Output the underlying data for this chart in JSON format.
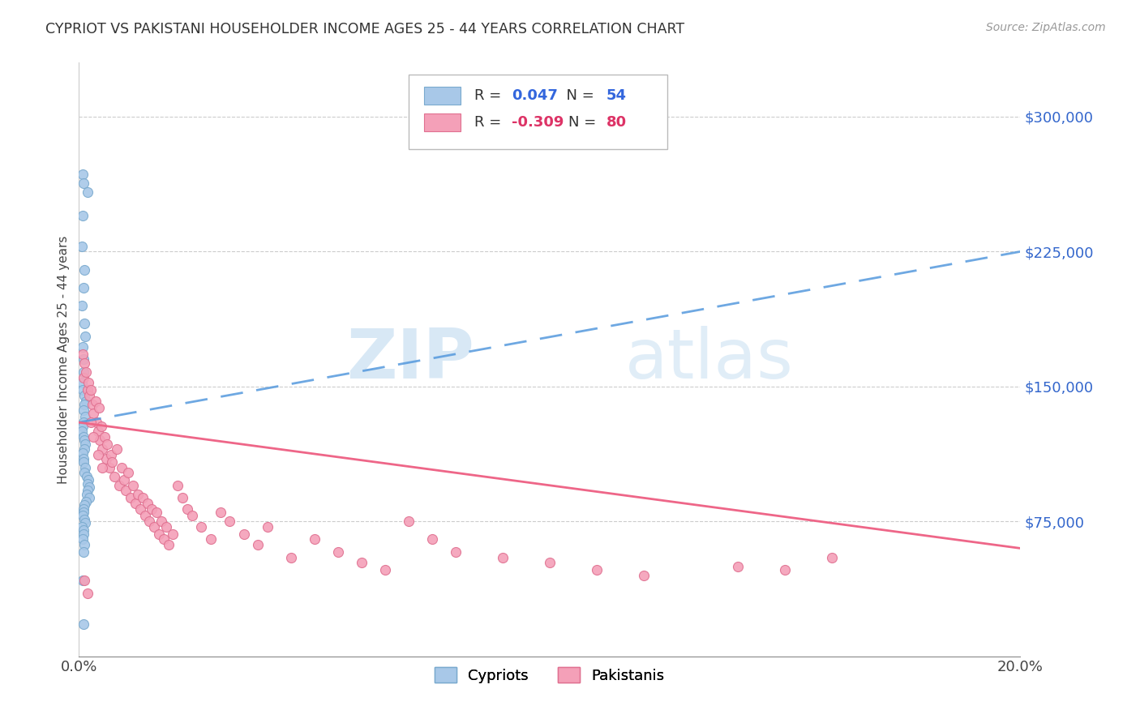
{
  "title": "CYPRIOT VS PAKISTANI HOUSEHOLDER INCOME AGES 25 - 44 YEARS CORRELATION CHART",
  "source": "Source: ZipAtlas.com",
  "ylabel": "Householder Income Ages 25 - 44 years",
  "xlim": [
    0.0,
    0.2
  ],
  "ylim": [
    0,
    330000
  ],
  "cypriot_color": "#a8c8e8",
  "cypriot_edge": "#7aaace",
  "pakistani_color": "#f4a0b8",
  "pakistani_edge": "#e07090",
  "cypriot_line_color": "#5599dd",
  "pakistani_line_color": "#ee6688",
  "watermark_zip": "ZIP",
  "watermark_atlas": "atlas",
  "legend_label_cypriot": "Cypriots",
  "legend_label_pakistani": "Pakistanis",
  "cypriot_x": [
    0.0008,
    0.001,
    0.0018,
    0.0008,
    0.0006,
    0.0012,
    0.0009,
    0.0007,
    0.0011,
    0.0013,
    0.0008,
    0.001,
    0.0009,
    0.0007,
    0.0008,
    0.0012,
    0.0015,
    0.0011,
    0.0009,
    0.0013,
    0.001,
    0.0008,
    0.0007,
    0.0009,
    0.0011,
    0.0014,
    0.0012,
    0.0008,
    0.001,
    0.0009,
    0.0013,
    0.0011,
    0.0016,
    0.002,
    0.0018,
    0.0022,
    0.0019,
    0.0017,
    0.0021,
    0.0015,
    0.0012,
    0.001,
    0.0009,
    0.0008,
    0.0011,
    0.0013,
    0.0007,
    0.0009,
    0.001,
    0.0008,
    0.0012,
    0.0009,
    0.0008,
    0.001
  ],
  "cypriot_y": [
    268000,
    263000,
    258000,
    245000,
    228000,
    215000,
    205000,
    195000,
    185000,
    178000,
    172000,
    165000,
    158000,
    152000,
    148000,
    145000,
    142000,
    140000,
    137000,
    133000,
    130000,
    128000,
    125000,
    122000,
    120000,
    118000,
    115000,
    113000,
    110000,
    108000,
    105000,
    102000,
    100000,
    98000,
    96000,
    94000,
    92000,
    90000,
    88000,
    86000,
    84000,
    82000,
    80000,
    78000,
    76000,
    74000,
    72000,
    70000,
    68000,
    65000,
    62000,
    58000,
    42000,
    18000
  ],
  "pakistani_x": [
    0.0008,
    0.001,
    0.0012,
    0.0015,
    0.0018,
    0.002,
    0.0022,
    0.0025,
    0.0028,
    0.003,
    0.0035,
    0.0038,
    0.004,
    0.0042,
    0.0045,
    0.0048,
    0.005,
    0.0055,
    0.0058,
    0.006,
    0.0065,
    0.0068,
    0.007,
    0.0075,
    0.008,
    0.0085,
    0.009,
    0.0095,
    0.01,
    0.0105,
    0.011,
    0.0115,
    0.012,
    0.0125,
    0.013,
    0.0135,
    0.014,
    0.0145,
    0.015,
    0.0155,
    0.016,
    0.0165,
    0.017,
    0.0175,
    0.018,
    0.0185,
    0.019,
    0.02,
    0.021,
    0.022,
    0.023,
    0.024,
    0.026,
    0.028,
    0.03,
    0.032,
    0.035,
    0.038,
    0.04,
    0.045,
    0.05,
    0.055,
    0.06,
    0.065,
    0.07,
    0.075,
    0.08,
    0.09,
    0.1,
    0.11,
    0.12,
    0.14,
    0.15,
    0.16,
    0.0025,
    0.003,
    0.004,
    0.005,
    0.0012,
    0.0018
  ],
  "pakistani_y": [
    168000,
    155000,
    163000,
    158000,
    148000,
    152000,
    145000,
    148000,
    140000,
    135000,
    142000,
    130000,
    125000,
    138000,
    120000,
    128000,
    115000,
    122000,
    110000,
    118000,
    105000,
    112000,
    108000,
    100000,
    115000,
    95000,
    105000,
    98000,
    92000,
    102000,
    88000,
    95000,
    85000,
    90000,
    82000,
    88000,
    78000,
    85000,
    75000,
    82000,
    72000,
    80000,
    68000,
    75000,
    65000,
    72000,
    62000,
    68000,
    95000,
    88000,
    82000,
    78000,
    72000,
    65000,
    80000,
    75000,
    68000,
    62000,
    72000,
    55000,
    65000,
    58000,
    52000,
    48000,
    75000,
    65000,
    58000,
    55000,
    52000,
    48000,
    45000,
    50000,
    48000,
    55000,
    130000,
    122000,
    112000,
    105000,
    42000,
    35000
  ]
}
